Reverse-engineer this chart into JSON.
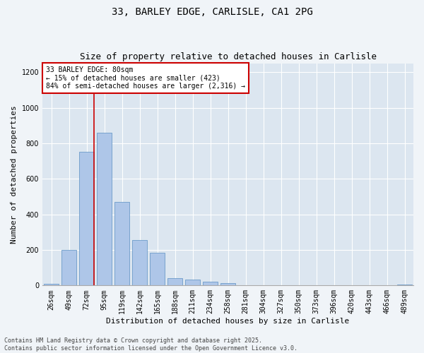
{
  "title_line1": "33, BARLEY EDGE, CARLISLE, CA1 2PG",
  "title_line2": "Size of property relative to detached houses in Carlisle",
  "xlabel": "Distribution of detached houses by size in Carlisle",
  "ylabel": "Number of detached properties",
  "bar_labels": [
    "26sqm",
    "49sqm",
    "72sqm",
    "95sqm",
    "119sqm",
    "142sqm",
    "165sqm",
    "188sqm",
    "211sqm",
    "234sqm",
    "258sqm",
    "281sqm",
    "304sqm",
    "327sqm",
    "350sqm",
    "373sqm",
    "396sqm",
    "420sqm",
    "443sqm",
    "466sqm",
    "489sqm"
  ],
  "bar_values": [
    10,
    200,
    750,
    860,
    470,
    255,
    185,
    40,
    35,
    20,
    12,
    2,
    2,
    0,
    2,
    0,
    0,
    0,
    0,
    0,
    5
  ],
  "bar_color": "#aec6e8",
  "bar_edgecolor": "#5a8fc2",
  "vline_pos": 2.42,
  "vline_color": "#cc0000",
  "annotation_text": "33 BARLEY EDGE: 80sqm\n← 15% of detached houses are smaller (423)\n84% of semi-detached houses are larger (2,316) →",
  "annotation_box_edgecolor": "#cc0000",
  "ylim": [
    0,
    1250
  ],
  "yticks": [
    0,
    200,
    400,
    600,
    800,
    1000,
    1200
  ],
  "fig_background": "#f0f4f8",
  "plot_background": "#dce6f0",
  "footer_text": "Contains HM Land Registry data © Crown copyright and database right 2025.\nContains public sector information licensed under the Open Government Licence v3.0.",
  "title_fontsize": 10,
  "subtitle_fontsize": 9,
  "axis_label_fontsize": 8,
  "tick_fontsize": 7,
  "annotation_fontsize": 7,
  "footer_fontsize": 6
}
